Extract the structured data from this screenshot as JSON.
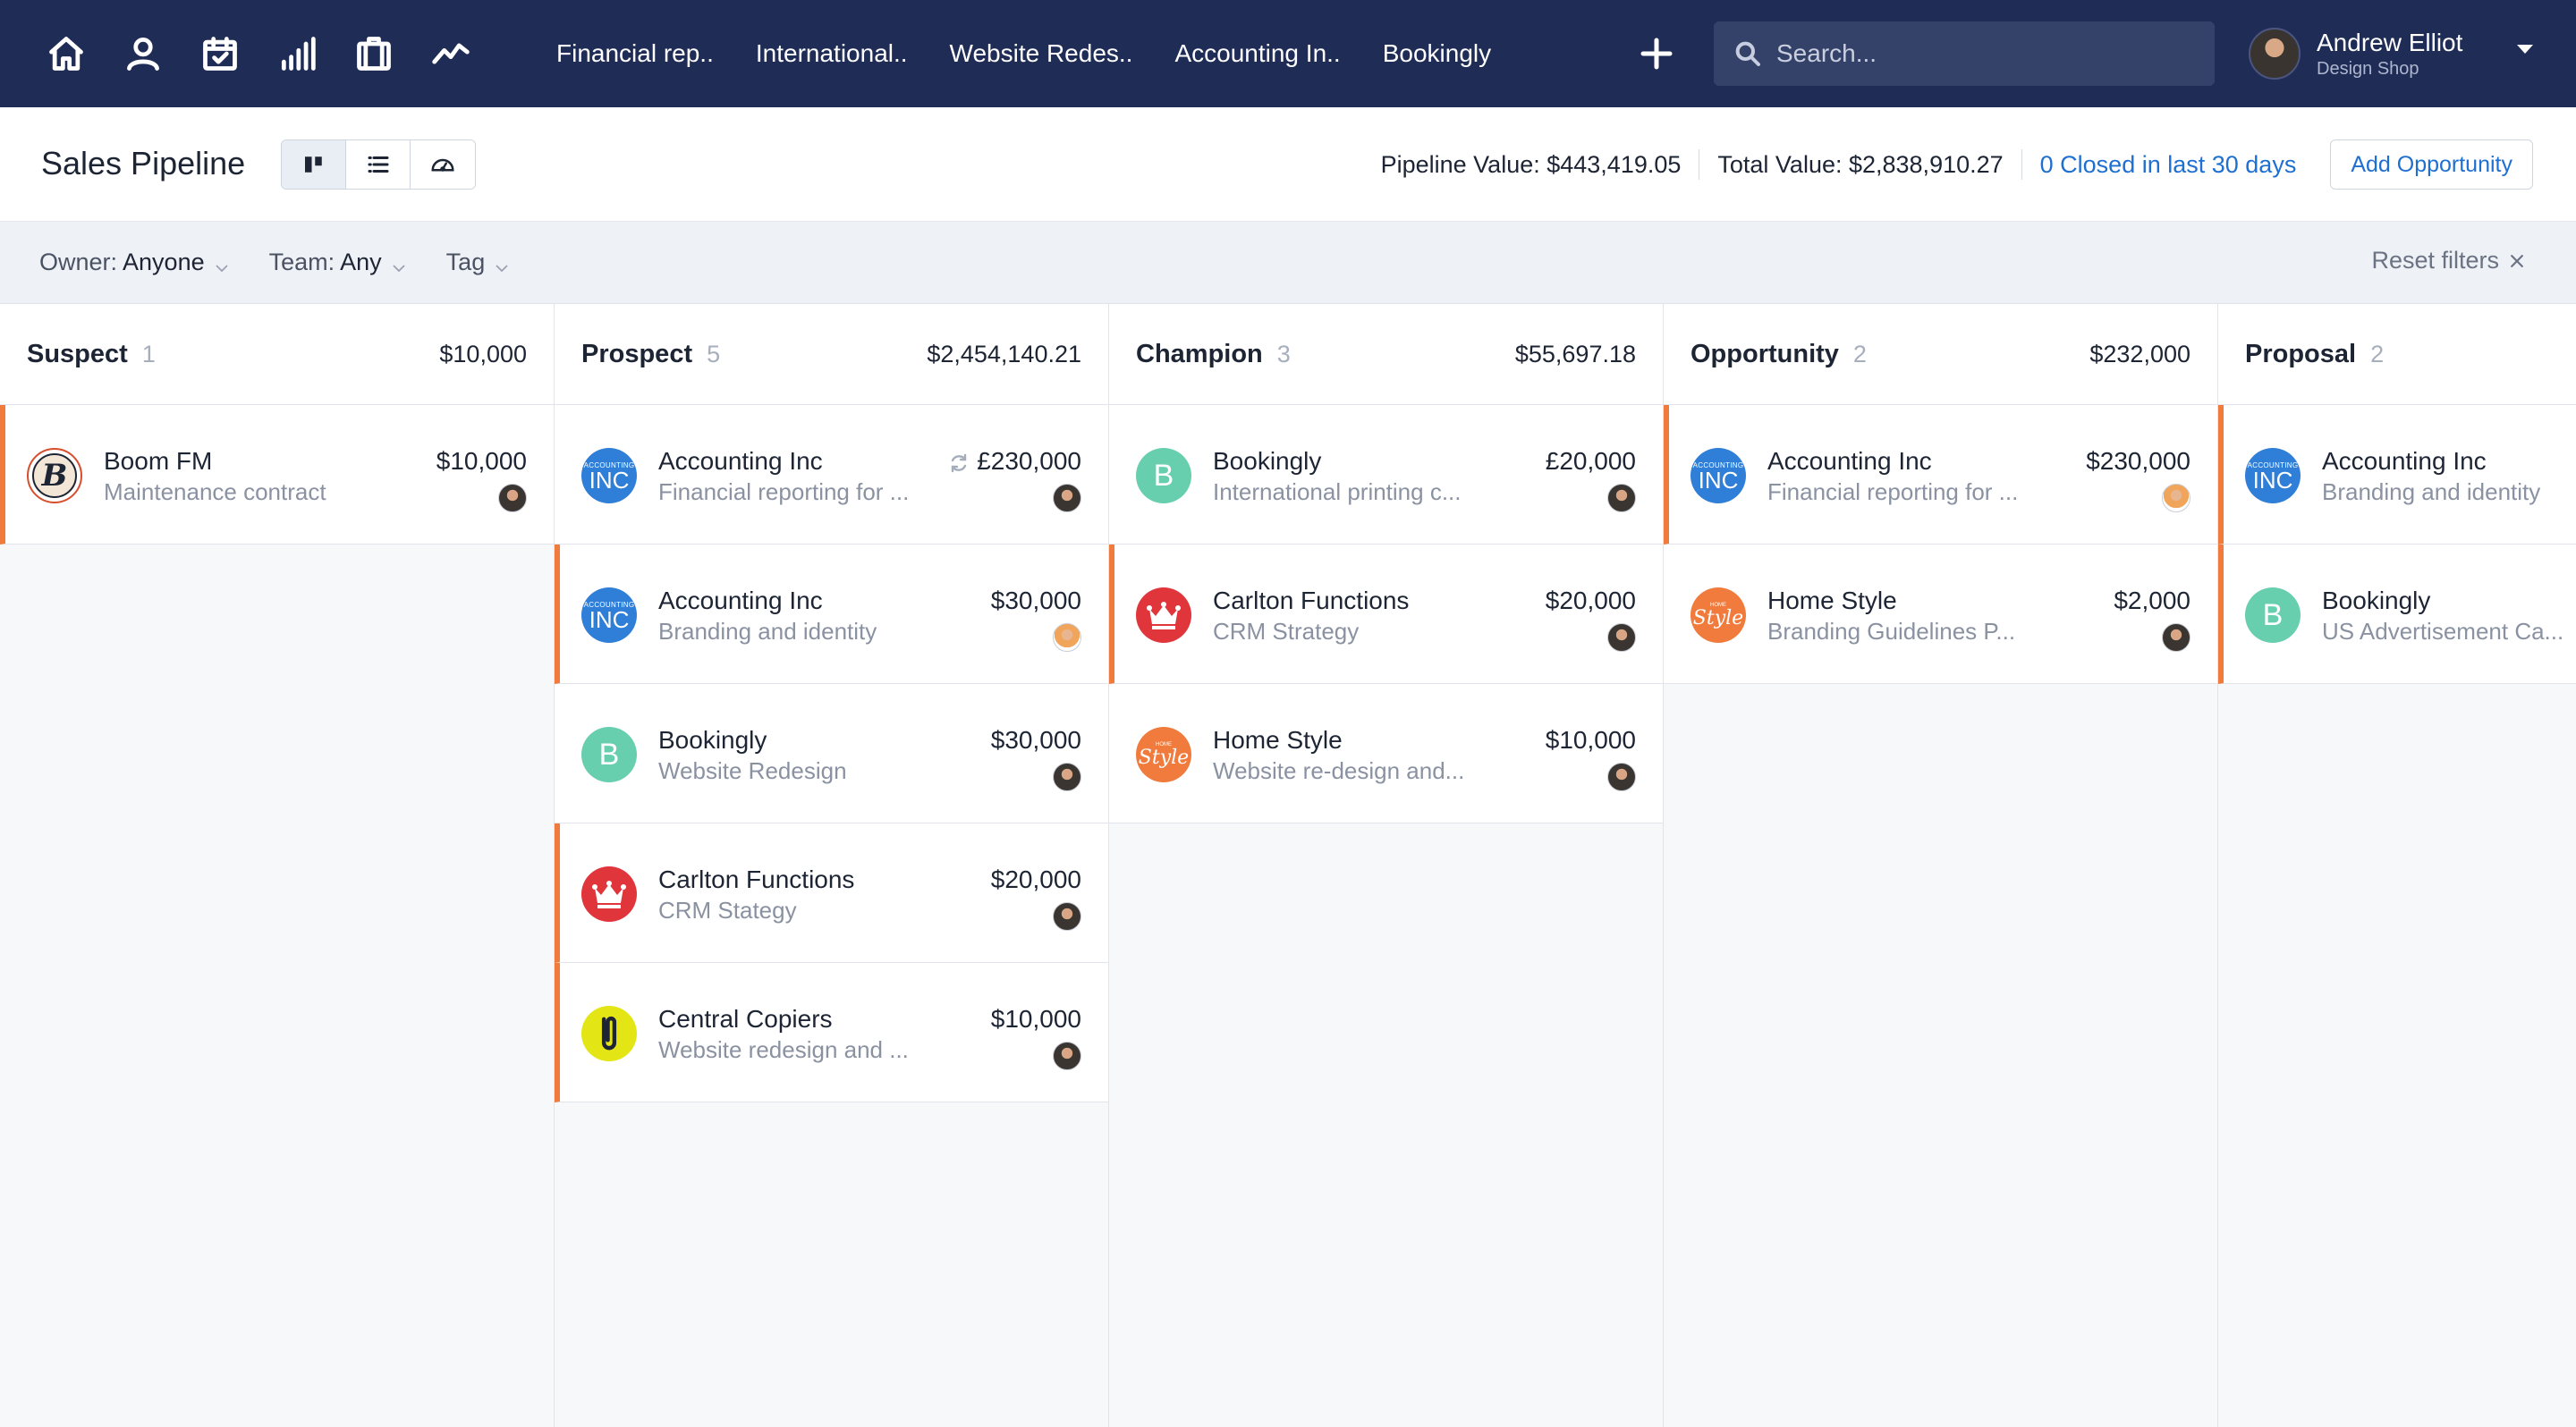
{
  "nav": {
    "icons": [
      "home-icon",
      "user-icon",
      "calendar-icon",
      "signal-bars-icon",
      "briefcase-icon",
      "activity-icon"
    ],
    "tabs": [
      "Financial rep..",
      "International..",
      "Website Redes..",
      "Accounting In..",
      "Bookingly"
    ],
    "search_placeholder": "Search...",
    "user": {
      "name": "Andrew Elliot",
      "org": "Design Shop"
    }
  },
  "header": {
    "title": "Sales Pipeline",
    "pipeline_value": "Pipeline Value: $443,419.05",
    "total_value": "Total Value: $2,838,910.27",
    "closed_link": "0 Closed in last 30 days",
    "add_button": "Add Opportunity"
  },
  "filters": {
    "owner_label": "Owner:",
    "owner_value": "Anyone",
    "team_label": "Team:",
    "team_value": "Any",
    "tag_label": "Tag",
    "reset_label": "Reset filters"
  },
  "colors": {
    "nav": "#1f2c55",
    "accent_link": "#1f6fd1",
    "flag": "#f07b3c"
  },
  "columns": [
    {
      "name": "Suspect",
      "count": "1",
      "total": "$10,000",
      "cards": [
        {
          "title": "Boom FM",
          "subtitle": "Maintenance contract",
          "value": "$10,000",
          "logo": "boom",
          "flag": true,
          "sync": false
        }
      ]
    },
    {
      "name": "Prospect",
      "count": "5",
      "total": "$2,454,140.21",
      "cards": [
        {
          "title": "Accounting Inc",
          "subtitle": "Financial reporting for ...",
          "value": "£230,000",
          "logo": "accounting",
          "flag": false,
          "sync": true
        },
        {
          "title": "Accounting Inc",
          "subtitle": "Branding and identity",
          "value": "$30,000",
          "logo": "accounting",
          "flag": true,
          "sync": false,
          "owner_alt": true
        },
        {
          "title": "Bookingly",
          "subtitle": "Website Redesign",
          "value": "$30,000",
          "logo": "bookingly",
          "flag": false,
          "sync": false
        },
        {
          "title": "Carlton Functions",
          "subtitle": "CRM Stategy",
          "value": "$20,000",
          "logo": "carlton",
          "flag": true,
          "sync": false
        },
        {
          "title": "Central Copiers",
          "subtitle": "Website redesign and ...",
          "value": "$10,000",
          "logo": "central",
          "flag": true,
          "sync": false
        }
      ]
    },
    {
      "name": "Champion",
      "count": "3",
      "total": "$55,697.18",
      "cards": [
        {
          "title": "Bookingly",
          "subtitle": "International printing c...",
          "value": "£20,000",
          "logo": "bookingly",
          "flag": false,
          "sync": false
        },
        {
          "title": "Carlton Functions",
          "subtitle": "CRM Strategy",
          "value": "$20,000",
          "logo": "carlton",
          "flag": true,
          "sync": false
        },
        {
          "title": "Home Style",
          "subtitle": "Website re-design and...",
          "value": "$10,000",
          "logo": "homestyle",
          "flag": false,
          "sync": false
        }
      ]
    },
    {
      "name": "Opportunity",
      "count": "2",
      "total": "$232,000",
      "cards": [
        {
          "title": "Accounting Inc",
          "subtitle": "Financial reporting for ...",
          "value": "$230,000",
          "logo": "accounting",
          "flag": true,
          "sync": false,
          "owner_alt": true
        },
        {
          "title": "Home Style",
          "subtitle": "Branding Guidelines P...",
          "value": "$2,000",
          "logo": "homestyle",
          "flag": false,
          "sync": false
        }
      ]
    },
    {
      "name": "Proposal",
      "count": "2",
      "total": "",
      "cards": [
        {
          "title": "Accounting Inc",
          "subtitle": "Branding and identity",
          "value": "",
          "logo": "accounting",
          "flag": true,
          "sync": false
        },
        {
          "title": "Bookingly",
          "subtitle": "US Advertisement Ca...",
          "value": "",
          "logo": "bookingly",
          "flag": true,
          "sync": false
        }
      ]
    }
  ],
  "logo_text": {
    "accounting_small": "ACCOUNTING",
    "accounting_big": "INC",
    "bookingly": "B",
    "boom": "B",
    "homestyle_small": "HOME",
    "homestyle_big": "Style"
  }
}
